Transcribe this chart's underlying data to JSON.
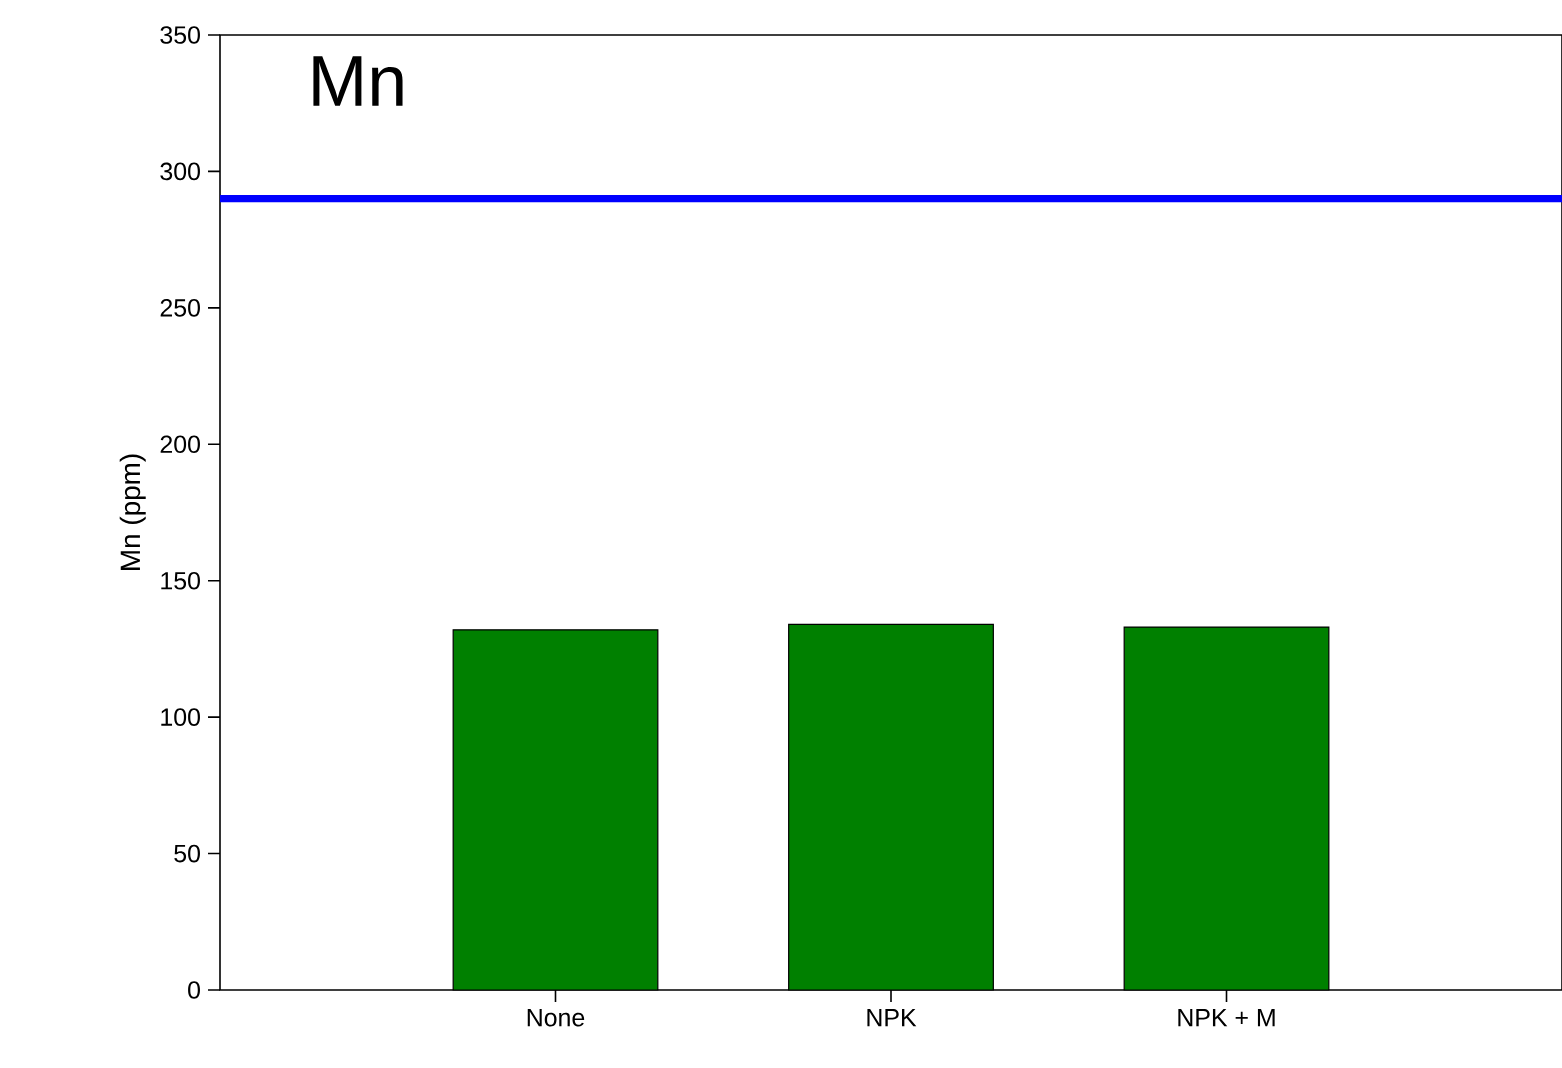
{
  "chart_data": {
    "type": "bar",
    "title": "Mn",
    "ylabel": "Mn (ppm)",
    "categories": [
      null,
      "None",
      "NPK",
      "NPK + M",
      null
    ],
    "values": [
      null,
      132,
      134,
      133,
      null
    ],
    "color": "#008000",
    "ylim": [
      0,
      350
    ],
    "yticks": [
      0,
      50,
      100,
      150,
      200,
      250,
      300,
      350
    ],
    "ref_lines": [
      {
        "axis": "y",
        "value": 290,
        "color": "#0000ff"
      }
    ]
  }
}
